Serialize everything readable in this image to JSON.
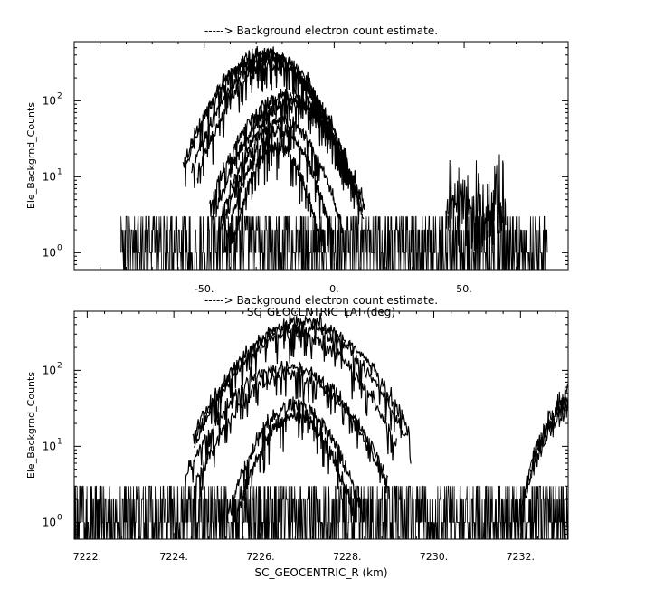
{
  "chart_data": [
    {
      "type": "line",
      "title": "-----> Background electron count estimate.",
      "xlabel": "SC_GEOCENTRIC_LAT (deg)",
      "ylabel": "Ele_Backgrnd_Counts",
      "yscale": "log",
      "xlim": [
        -100,
        90
      ],
      "ylim": [
        0.6,
        600
      ],
      "xticks": [
        -50,
        0,
        50
      ],
      "xtick_labels": [
        "-50.",
        "0.",
        "50."
      ],
      "yticks": [
        1,
        10,
        100
      ],
      "ytick_labels": [
        "10^0",
        "10^1",
        "10^2"
      ],
      "grid": false,
      "series": [
        {
          "kind": "noise_floor",
          "x_range": [
            -82,
            82
          ],
          "levels": [
            1,
            2,
            3
          ]
        },
        {
          "kind": "peak",
          "center": -27,
          "sigma": 12,
          "peak": 400
        },
        {
          "kind": "peak",
          "center": -26,
          "sigma": 12,
          "peak": 420
        },
        {
          "kind": "peak",
          "center": -25,
          "sigma": 11.5,
          "peak": 350
        },
        {
          "kind": "peak",
          "center": -24,
          "sigma": 11,
          "peak": 300
        },
        {
          "kind": "peak",
          "center": -18,
          "sigma": 11.5,
          "peak": 120
        },
        {
          "kind": "peak",
          "center": -17,
          "sigma": 11,
          "peak": 100
        },
        {
          "kind": "peak",
          "center": -16,
          "sigma": 10.5,
          "peak": 90
        },
        {
          "kind": "peak",
          "center": -20,
          "sigma": 9,
          "peak": 55
        },
        {
          "kind": "peak",
          "center": -21,
          "sigma": 8,
          "peak": 40
        },
        {
          "kind": "peak",
          "center": -22,
          "sigma": 7,
          "peak": 25
        },
        {
          "kind": "burst",
          "x_range": [
            43,
            66
          ],
          "peak": 20
        }
      ]
    },
    {
      "type": "line",
      "title": "-----> Background electron count estimate.",
      "xlabel": "SC_GEOCENTRIC_R (km)",
      "ylabel": "Ele_Backgrnd_Counts",
      "yscale": "log",
      "xlim": [
        7221.7,
        7233.1
      ],
      "ylim": [
        0.6,
        600
      ],
      "xticks": [
        7222,
        7224,
        7226,
        7228,
        7230,
        7232
      ],
      "xtick_labels": [
        "7222.",
        "7224.",
        "7226.",
        "7228.",
        "7230.",
        "7232."
      ],
      "yticks": [
        1,
        10,
        100
      ],
      "ytick_labels": [
        "10^0",
        "10^1",
        "10^2"
      ],
      "grid": false,
      "series": [
        {
          "kind": "noise_floor",
          "x_range": [
            7221.7,
            7233.1
          ],
          "levels": [
            1,
            2,
            3
          ]
        },
        {
          "kind": "peak",
          "center": 7227.0,
          "sigma": 0.95,
          "peak": 420
        },
        {
          "kind": "peak",
          "center": 7226.9,
          "sigma": 0.95,
          "peak": 380
        },
        {
          "kind": "peak",
          "center": 7226.8,
          "sigma": 0.9,
          "peak": 300
        },
        {
          "kind": "peak",
          "center": 7226.6,
          "sigma": 0.9,
          "peak": 110
        },
        {
          "kind": "peak",
          "center": 7226.7,
          "sigma": 0.85,
          "peak": 90
        },
        {
          "kind": "peak",
          "center": 7226.8,
          "sigma": 0.6,
          "peak": 35
        },
        {
          "kind": "peak",
          "center": 7226.8,
          "sigma": 0.55,
          "peak": 25
        },
        {
          "kind": "rise",
          "x_range": [
            7232.0,
            7233.1
          ],
          "peak": 50
        }
      ]
    }
  ]
}
